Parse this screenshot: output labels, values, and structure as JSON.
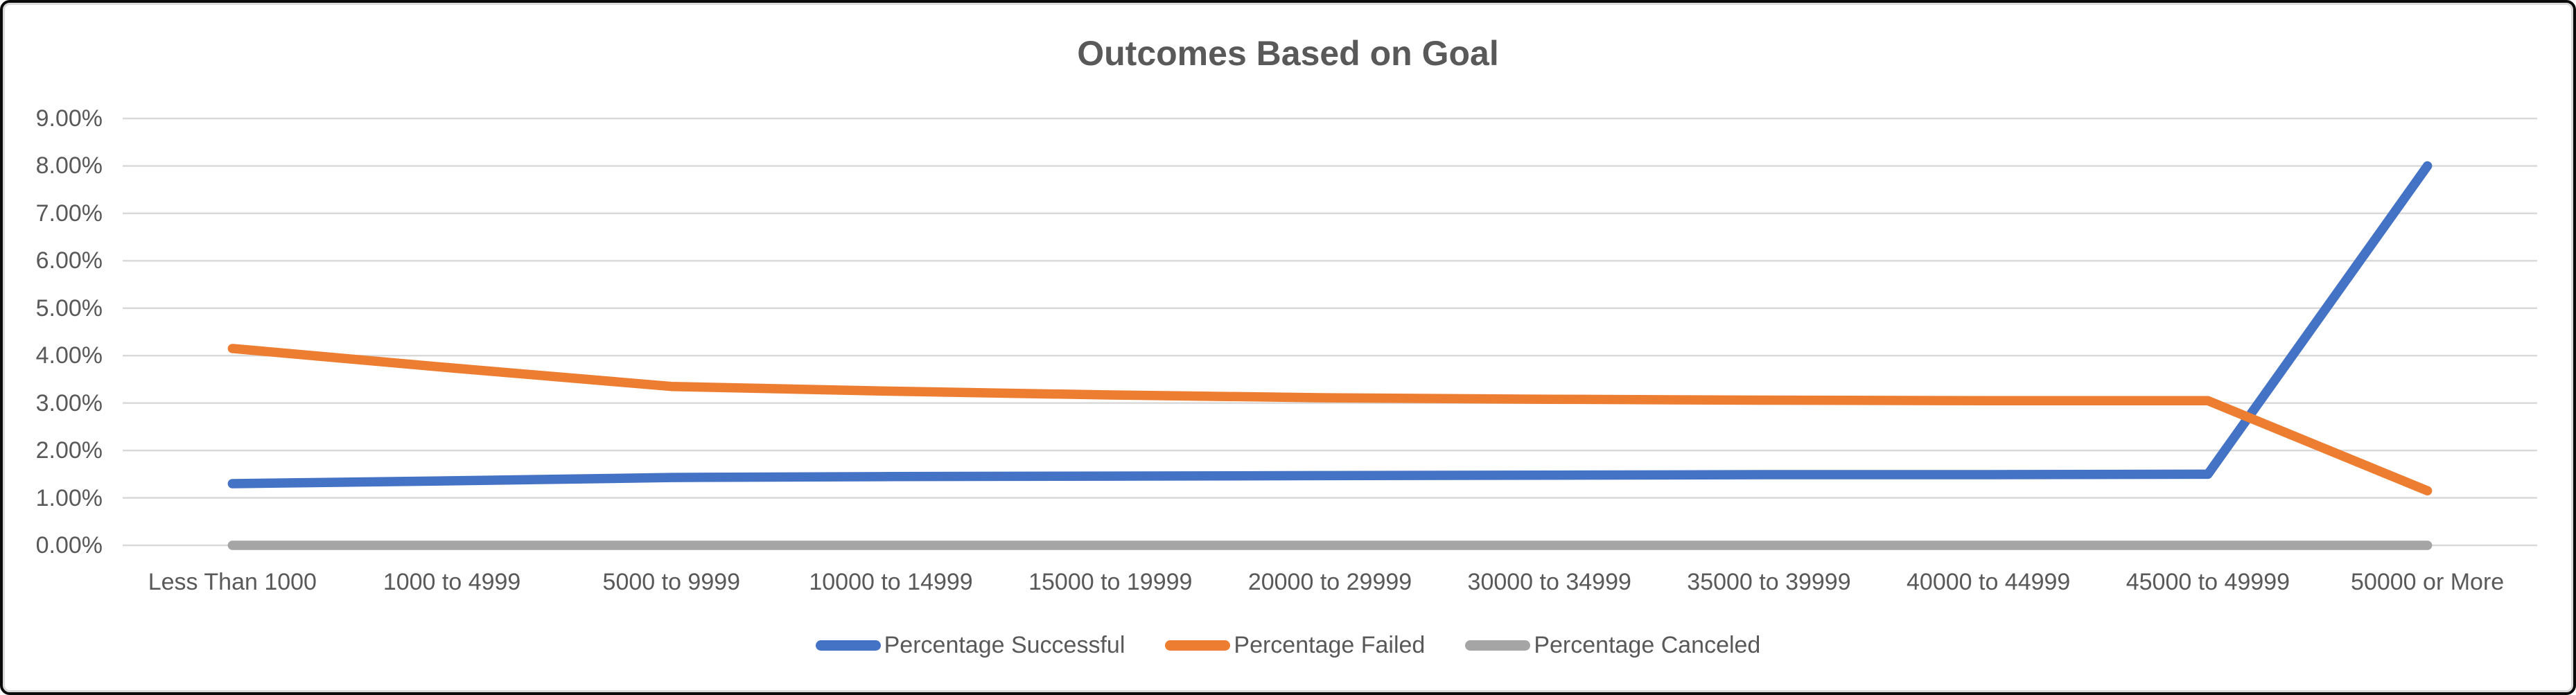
{
  "chart_data": {
    "type": "line",
    "title": "Outcomes Based on Goal",
    "xlabel": "",
    "ylabel": "",
    "ylim": [
      0,
      9
    ],
    "y_tick_step": 1,
    "y_tick_labels": [
      "0.00%",
      "1.00%",
      "2.00%",
      "3.00%",
      "4.00%",
      "5.00%",
      "6.00%",
      "7.00%",
      "8.00%",
      "9.00%"
    ],
    "grid": true,
    "legend_position": "bottom",
    "categories": [
      "Less Than 1000",
      "1000 to 4999",
      "5000 to 9999",
      "10000 to 14999",
      "15000 to 19999",
      "20000 to 29999",
      "30000 to 34999",
      "35000 to 39999",
      "40000 to 44999",
      "45000 to 49999",
      "50000 or More"
    ],
    "series": [
      {
        "name": "Percentage Successful",
        "color": "#4472C4",
        "values": [
          1.3,
          1.36,
          1.43,
          1.45,
          1.46,
          1.47,
          1.48,
          1.49,
          1.49,
          1.5,
          8.0
        ]
      },
      {
        "name": "Percentage Failed",
        "color": "#ED7D31",
        "values": [
          4.15,
          3.74,
          3.35,
          3.25,
          3.17,
          3.11,
          3.08,
          3.06,
          3.05,
          3.05,
          1.15
        ]
      },
      {
        "name": "Percentage Canceled",
        "color": "#A5A5A5",
        "values": [
          0.0,
          0.0,
          0.0,
          0.0,
          0.0,
          0.0,
          0.0,
          0.0,
          0.0,
          0.0,
          0.0
        ]
      }
    ],
    "colors": {
      "gridline": "#D9D9D9",
      "text": "#595959",
      "frame_border": "#0b0b0b",
      "background": "#ffffff"
    }
  }
}
